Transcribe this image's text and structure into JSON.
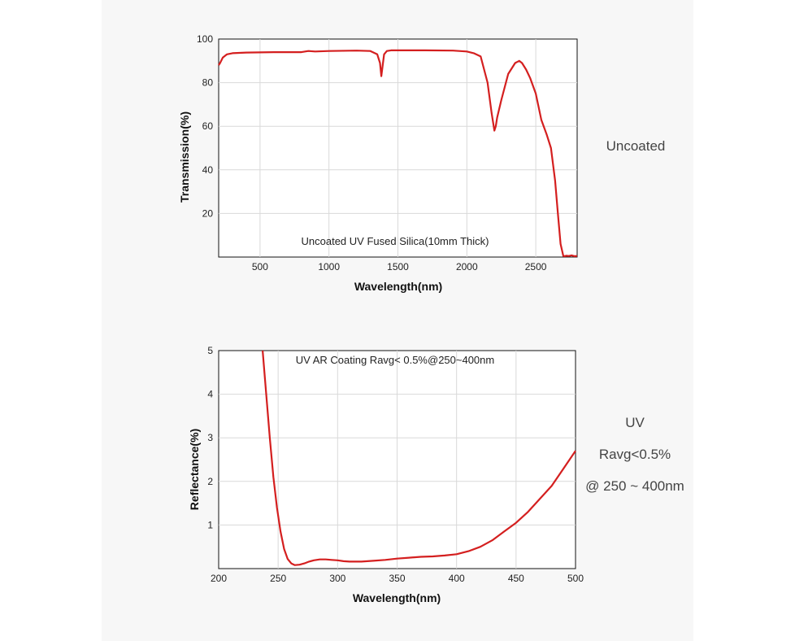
{
  "side_labels": {
    "top": "Uncoated",
    "bottom_line1": "UV",
    "bottom_line2": "Ravg<0.5%",
    "bottom_line3": "@ 250 ~ 400nm"
  },
  "colors": {
    "curve": "#d41f1f",
    "grid": "#d9d9d9",
    "panel": "#f7f7f7"
  },
  "chart_data": [
    {
      "type": "line",
      "title": "",
      "annotation": "Uncoated UV Fused Silica(10mm Thick)",
      "xlabel": "Wavelength(nm)",
      "ylabel": "Transmission(%)",
      "xlim": [
        200,
        2800
      ],
      "ylim": [
        0,
        100
      ],
      "xticks": [
        500,
        1000,
        1500,
        2000,
        2500
      ],
      "yticks": [
        20,
        40,
        60,
        80,
        100
      ],
      "grid": true,
      "series": [
        {
          "x": [
            200,
            210,
            230,
            260,
            300,
            400,
            600,
            800,
            850,
            900,
            1000,
            1200,
            1300,
            1350,
            1370,
            1380,
            1390,
            1400,
            1420,
            1450,
            1500,
            1700,
            1900,
            2000,
            2050,
            2100,
            2150,
            2180,
            2200,
            2210,
            2220,
            2250,
            2300,
            2350,
            2380,
            2400,
            2430,
            2460,
            2500,
            2540,
            2580,
            2610,
            2640,
            2660,
            2680,
            2700,
            2710,
            2720,
            2740,
            2760,
            2780,
            2800
          ],
          "y": [
            88,
            89,
            91.5,
            93,
            93.5,
            93.8,
            94,
            94,
            94.5,
            94.3,
            94.5,
            94.7,
            94.5,
            93,
            89,
            83,
            88,
            93,
            94.5,
            94.8,
            94.8,
            94.8,
            94.7,
            94.3,
            93.5,
            92,
            80,
            66,
            58,
            60,
            64,
            72,
            84,
            89,
            90,
            89,
            86,
            82,
            75,
            63,
            56,
            50,
            35,
            20,
            6,
            0.5,
            0.4,
            0.6,
            0.5,
            0.8,
            0.4,
            0.5
          ]
        }
      ]
    },
    {
      "type": "line",
      "title": "",
      "annotation": "UV AR Coating Ravg< 0.5%@250~400nm",
      "xlabel": "Wavelength(nm)",
      "ylabel": "Reflectance(%)",
      "xlim": [
        200,
        500
      ],
      "ylim": [
        0,
        5
      ],
      "xticks": [
        200,
        250,
        300,
        350,
        400,
        450,
        500
      ],
      "yticks": [
        1,
        2,
        3,
        4,
        5
      ],
      "grid": true,
      "series": [
        {
          "x": [
            237,
            240,
            243,
            246,
            249,
            252,
            255,
            258,
            261,
            264,
            268,
            272,
            276,
            280,
            285,
            290,
            295,
            300,
            305,
            310,
            315,
            320,
            325,
            330,
            340,
            350,
            360,
            370,
            380,
            390,
            400,
            410,
            420,
            430,
            440,
            450,
            460,
            470,
            480,
            490,
            500
          ],
          "y": [
            5.0,
            4.0,
            3.0,
            2.1,
            1.4,
            0.85,
            0.45,
            0.22,
            0.12,
            0.08,
            0.09,
            0.12,
            0.16,
            0.19,
            0.21,
            0.21,
            0.2,
            0.19,
            0.17,
            0.16,
            0.16,
            0.16,
            0.17,
            0.18,
            0.2,
            0.23,
            0.25,
            0.27,
            0.28,
            0.3,
            0.33,
            0.4,
            0.5,
            0.65,
            0.85,
            1.05,
            1.3,
            1.6,
            1.9,
            2.3,
            2.7
          ]
        }
      ]
    }
  ]
}
